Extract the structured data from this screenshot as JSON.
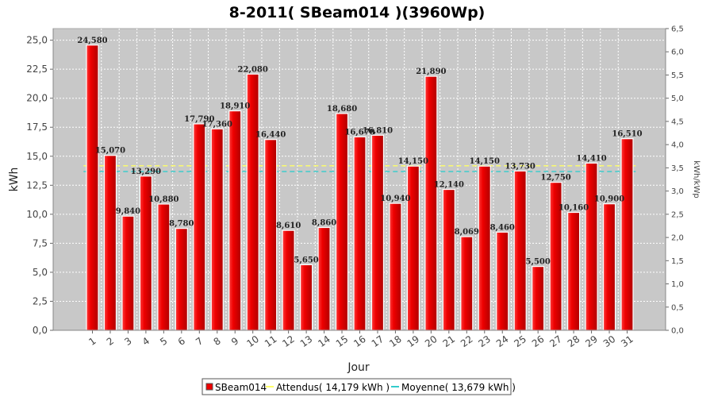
{
  "chart_data": {
    "type": "bar",
    "title": "8-2011( SBeam014 )(3960Wp)",
    "xlabel": "Jour",
    "ylabel": "kWh",
    "y2label": "kWh/kWp",
    "ylim": [
      0,
      26.0
    ],
    "y2lim": [
      0,
      6.5
    ],
    "yticks": [
      "0,0",
      "2,5",
      "5,0",
      "7,5",
      "10,0",
      "12,5",
      "15,0",
      "17,5",
      "20,0",
      "22,5",
      "25,0"
    ],
    "ytick_values": [
      0,
      2.5,
      5,
      7.5,
      10,
      12.5,
      15,
      17.5,
      20,
      22.5,
      25
    ],
    "y2ticks": [
      "0,0",
      "0,5",
      "1,0",
      "1,5",
      "2,0",
      "2,5",
      "3,0",
      "3,5",
      "4,0",
      "4,5",
      "5,0",
      "5,5",
      "6,0",
      "6,5"
    ],
    "y2tick_values": [
      0,
      0.5,
      1,
      1.5,
      2,
      2.5,
      3,
      3.5,
      4,
      4.5,
      5,
      5.5,
      6,
      6.5
    ],
    "categories": [
      "1",
      "2",
      "3",
      "4",
      "5",
      "6",
      "7",
      "8",
      "9",
      "10",
      "11",
      "12",
      "13",
      "14",
      "15",
      "16",
      "17",
      "18",
      "19",
      "20",
      "21",
      "22",
      "23",
      "24",
      "25",
      "26",
      "27",
      "28",
      "29",
      "30",
      "31"
    ],
    "series": [
      {
        "name": "SBeam014",
        "values": [
          24.58,
          15.07,
          9.84,
          13.29,
          10.88,
          8.78,
          17.79,
          17.36,
          18.91,
          22.08,
          16.44,
          8.61,
          5.65,
          8.86,
          18.68,
          16.67,
          16.81,
          10.94,
          14.15,
          21.89,
          12.14,
          8.069,
          14.15,
          8.46,
          13.73,
          5.5,
          12.75,
          10.16,
          14.41,
          10.9,
          16.51
        ],
        "labels": [
          "24,580",
          "15,070",
          "9,840",
          "13,290",
          "10,880",
          "8,780",
          "17,790",
          "17,360",
          "18,910",
          "22,080",
          "16,440",
          "8,610",
          "5,650",
          "8,860",
          "18,680",
          "16,670",
          "16,810",
          "10,940",
          "14,150",
          "21,890",
          "12,140",
          "8,069",
          "14,150",
          "8,460",
          "13,730",
          "5,500",
          "12,750",
          "10,160",
          "14,410",
          "10,900",
          "16,510"
        ],
        "color": "#ee0000"
      }
    ],
    "reference_lines": [
      {
        "name": "Attendus",
        "value": 14.179,
        "color": "#ffff66",
        "legend": "Attendus( 14,179 kWh )"
      },
      {
        "name": "Moyenne",
        "value": 13.679,
        "color": "#33cccc",
        "legend": "Moyenne( 13,679 kWh )"
      }
    ],
    "legend_position": "bottom",
    "grid": true,
    "plot_background": "#c0c0c0"
  }
}
